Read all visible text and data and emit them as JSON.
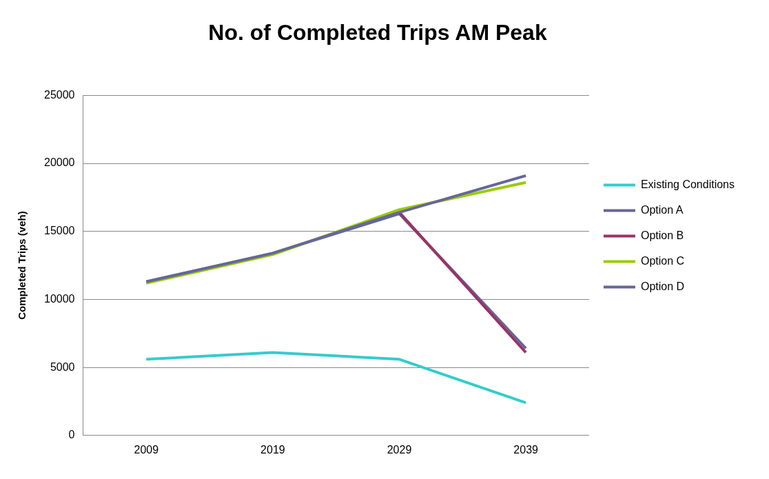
{
  "chart_data": {
    "type": "line",
    "title": "No. of Completed Trips AM Peak",
    "ylabel": "Completed Trips (veh)",
    "categories": [
      "2009",
      "2019",
      "2029",
      "2039"
    ],
    "series": [
      {
        "name": "Existing Conditions",
        "color": "#33cccc",
        "values": [
          5600,
          6100,
          5600,
          2400
        ]
      },
      {
        "name": "Option A",
        "color": "#666699",
        "values": [
          11300,
          13400,
          16400,
          19100
        ]
      },
      {
        "name": "Option B",
        "color": "#993366",
        "values": [
          null,
          null,
          16400,
          6100
        ]
      },
      {
        "name": "Option C",
        "color": "#99cc00",
        "values": [
          11200,
          13300,
          16600,
          18600
        ]
      },
      {
        "name": "Option D",
        "color": "#666699",
        "values": [
          11300,
          13400,
          16300,
          6400
        ]
      }
    ],
    "ylim": [
      0,
      25000
    ],
    "yticks": [
      0,
      5000,
      10000,
      15000,
      20000,
      25000
    ],
    "grid": "y",
    "legend": "right",
    "marker": "none",
    "line_style": "solid"
  }
}
